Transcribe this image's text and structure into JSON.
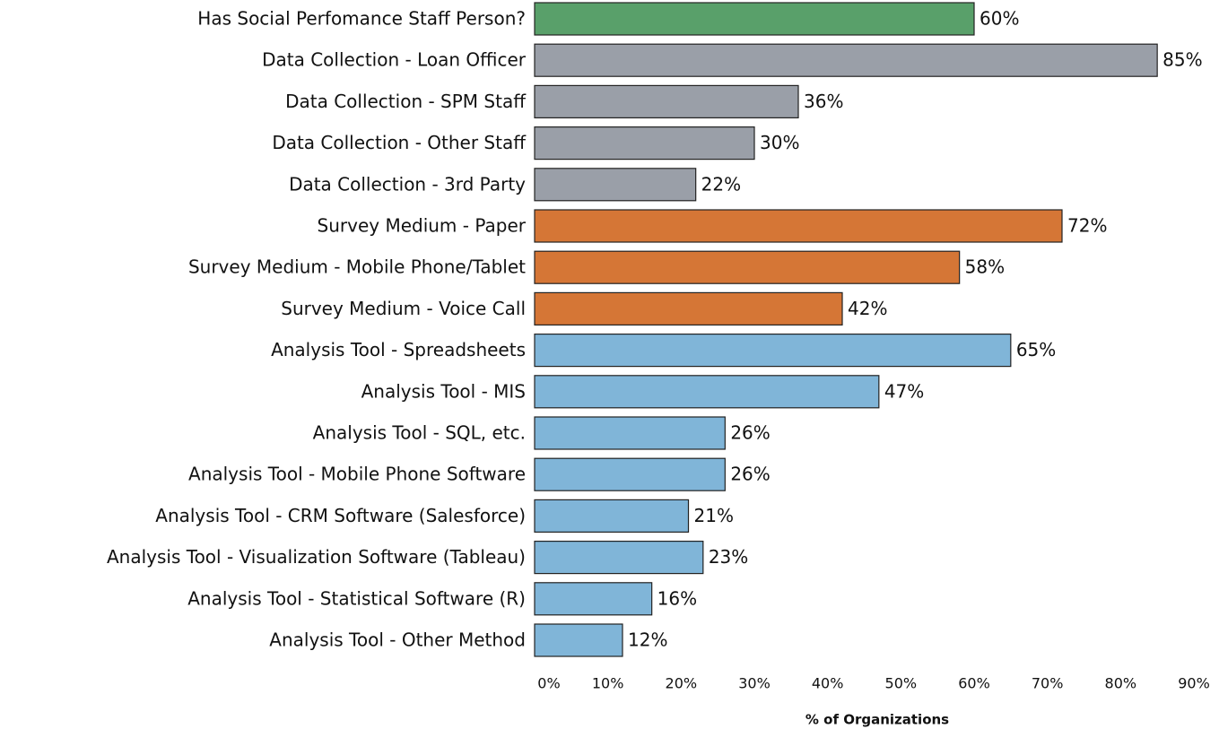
{
  "chart_data": {
    "type": "barh",
    "categories": [
      "Has Social Perfomance Staff Person?",
      "Data Collection - Loan Officer",
      "Data Collection - SPM Staff",
      "Data Collection - Other Staff",
      "Data Collection - 3rd Party",
      "Survey Medium - Paper",
      "Survey Medium - Mobile Phone/Tablet",
      "Survey Medium - Voice Call",
      "Analysis Tool - Spreadsheets",
      "Analysis Tool - MIS",
      "Analysis Tool - SQL, etc.",
      "Analysis Tool - Mobile Phone Software",
      "Analysis Tool - CRM Software (Salesforce)",
      "Analysis Tool - Visualization Software (Tableau)",
      "Analysis Tool - Statistical Software (R)",
      "Analysis Tool - Other Method"
    ],
    "values": [
      60,
      85,
      36,
      30,
      22,
      72,
      58,
      42,
      65,
      47,
      26,
      26,
      21,
      23,
      16,
      12
    ],
    "value_labels": [
      "60%",
      "85%",
      "36%",
      "30%",
      "22%",
      "72%",
      "58%",
      "42%",
      "65%",
      "47%",
      "26%",
      "26%",
      "21%",
      "23%",
      "16%",
      "12%"
    ],
    "colors": [
      "#59a06a",
      "#9a9fa8",
      "#9a9fa8",
      "#9a9fa8",
      "#9a9fa8",
      "#d57636",
      "#d57636",
      "#d57636",
      "#80b5d8",
      "#80b5d8",
      "#80b5d8",
      "#80b5d8",
      "#80b5d8",
      "#80b5d8",
      "#80b5d8",
      "#80b5d8"
    ],
    "xlabel": "% of Organizations",
    "xlim": [
      0,
      90
    ],
    "xticks": [
      {
        "value": 0,
        "label": "0%"
      },
      {
        "value": 10,
        "label": "10%"
      },
      {
        "value": 20,
        "label": "20%"
      },
      {
        "value": 30,
        "label": "30%"
      },
      {
        "value": 40,
        "label": "40%"
      },
      {
        "value": 50,
        "label": "50%"
      },
      {
        "value": 60,
        "label": "60%"
      },
      {
        "value": 70,
        "label": "70%"
      },
      {
        "value": 80,
        "label": "80%"
      },
      {
        "value": 90,
        "label": "90%"
      }
    ]
  }
}
